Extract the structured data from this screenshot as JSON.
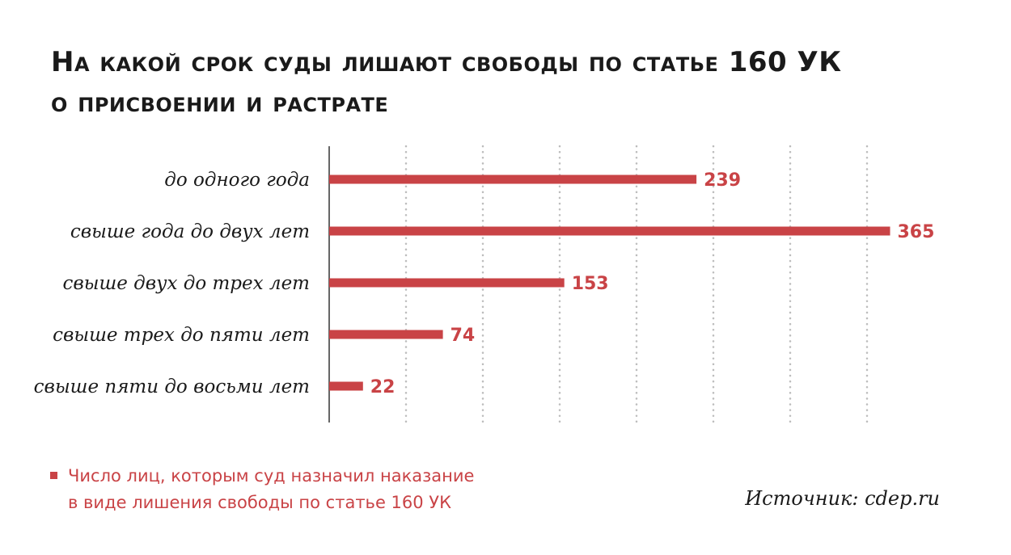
{
  "title_lines": [
    "На какой срок суды лишают свободы по статье 160 УК",
    "о присвоении и растрате"
  ],
  "legend": {
    "lines": [
      "Число лиц, которым суд назначил наказание",
      "в виде лишения свободы по статье 160 УК"
    ]
  },
  "source": "Источник: cdep.ru",
  "colors": {
    "bar": "#c94346",
    "axis": "#333333",
    "grid": "#bdbdbd",
    "text": "#1a1a1a"
  },
  "chart_data": {
    "type": "bar",
    "orientation": "horizontal",
    "categories": [
      "до одного года",
      "свыше года до двух лет",
      "свыше двух до трех лет",
      "свыше трех до пяти лет",
      "свыше пяти до восьми лет"
    ],
    "series": [
      {
        "name": "Число лиц, которым суд назначил наказание в виде лишения свободы по статье 160 УК",
        "values": [
          239,
          365,
          153,
          74,
          22
        ]
      }
    ],
    "xlim": [
      0,
      375
    ],
    "grid": "vertical dotted",
    "grid_values": [
      50,
      100,
      150,
      200,
      250,
      300,
      350
    ],
    "legend_position": "bottom-left",
    "data_labels": true
  }
}
